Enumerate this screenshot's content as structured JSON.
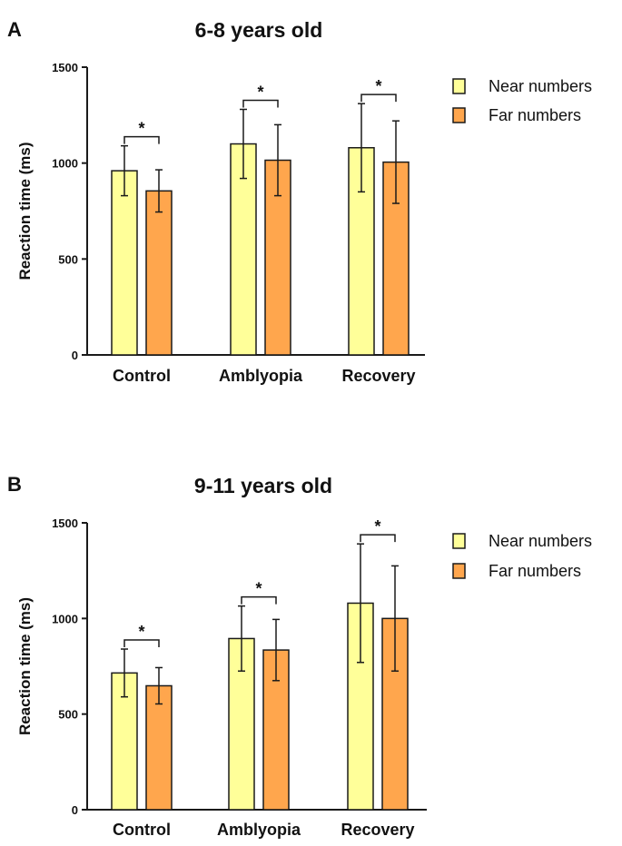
{
  "colors": {
    "near": "#FFFF99",
    "far": "#FFA64D",
    "axis": "#1a1a1a"
  },
  "chart_data": [
    {
      "panel_label": "A",
      "type": "bar",
      "title": "6-8 years old",
      "xlabel": "",
      "ylabel": "Reaction time (ms)",
      "ylim": [
        0,
        1500
      ],
      "yticks": [
        "0",
        "500",
        "1000",
        "1500"
      ],
      "categories": [
        "Control",
        "Amblyopia",
        "Recovery"
      ],
      "series": [
        {
          "name": "Near numbers",
          "values": [
            960,
            1100,
            1080
          ],
          "errors": [
            130,
            180,
            230
          ]
        },
        {
          "name": "Far numbers",
          "values": [
            855,
            1015,
            1005
          ],
          "errors": [
            110,
            185,
            215
          ]
        }
      ],
      "significance": [
        "*",
        "*",
        "*"
      ],
      "legend": "top-right"
    },
    {
      "panel_label": "B",
      "type": "bar",
      "title": "9-11 years old",
      "xlabel": "",
      "ylabel": "Reaction time (ms)",
      "ylim": [
        0,
        1500
      ],
      "yticks": [
        "0",
        "500",
        "1000",
        "1500"
      ],
      "categories": [
        "Control",
        "Amblyopia",
        "Recovery"
      ],
      "series": [
        {
          "name": "Near numbers",
          "values": [
            715,
            895,
            1080
          ],
          "errors": [
            125,
            170,
            310
          ]
        },
        {
          "name": "Far numbers",
          "values": [
            648,
            835,
            1000
          ],
          "errors": [
            95,
            160,
            275
          ]
        }
      ],
      "significance": [
        "*",
        "*",
        "*"
      ],
      "legend": "top-right"
    }
  ]
}
